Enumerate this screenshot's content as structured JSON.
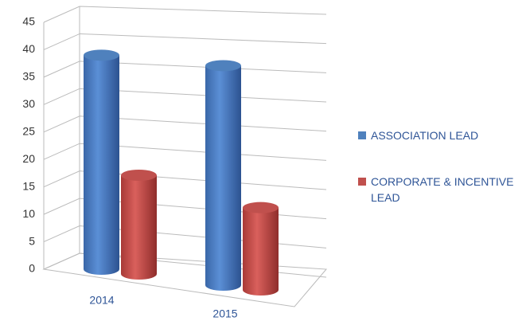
{
  "chart_data": {
    "type": "bar3d",
    "categories": [
      "2014",
      "2015"
    ],
    "series": [
      {
        "name": "ASSOCIATION LEAD",
        "color": "#4f81bd",
        "values": [
          39,
          40
        ]
      },
      {
        "name": "CORPORATE & INCENTIVE LEAD",
        "color": "#c0504d",
        "values": [
          18,
          15
        ]
      }
    ],
    "ylim": [
      0,
      45
    ],
    "yticks": [
      0,
      5,
      10,
      15,
      20,
      25,
      30,
      35,
      40,
      45
    ],
    "grid": true,
    "legend": "right"
  }
}
